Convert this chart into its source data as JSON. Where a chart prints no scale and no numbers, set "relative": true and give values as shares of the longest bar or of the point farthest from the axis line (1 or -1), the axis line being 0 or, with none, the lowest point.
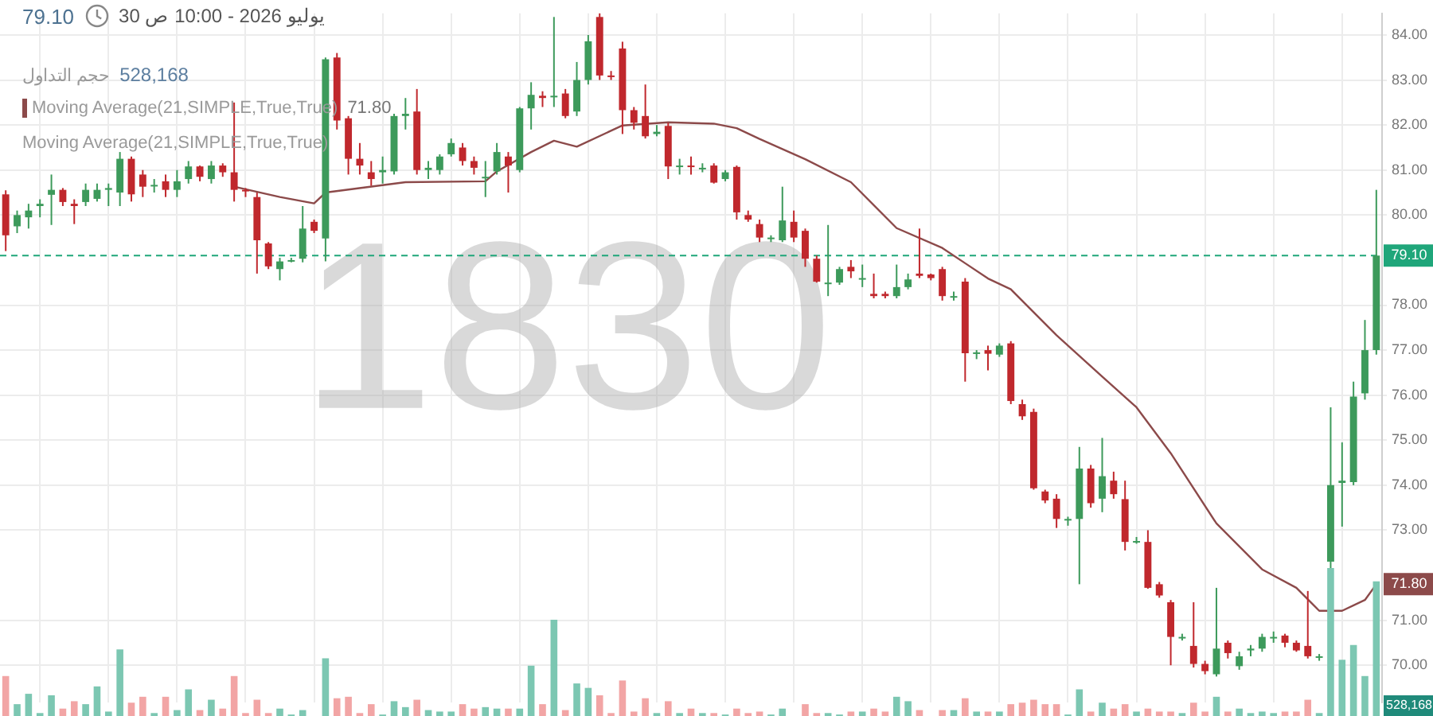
{
  "chart_data": [
    {
      "type": "candlestick",
      "categories": [
        null,
        null,
        null,
        null,
        null,
        null,
        null,
        null,
        null,
        null,
        null,
        null,
        null,
        null,
        null,
        null,
        null,
        null,
        null,
        null,
        null,
        null,
        null,
        null,
        null,
        null,
        null,
        null,
        null,
        null,
        null,
        null,
        null,
        null,
        null,
        null,
        null,
        null,
        null,
        null,
        null,
        null,
        null,
        null,
        null,
        null,
        null,
        null,
        null,
        null,
        null,
        null,
        null,
        null,
        null,
        null,
        null,
        null,
        null,
        null,
        null,
        null,
        null,
        null,
        null,
        null,
        null,
        null,
        null,
        null,
        null,
        null,
        null,
        null,
        null,
        null,
        null,
        null,
        null,
        null,
        null,
        null,
        null,
        null,
        null,
        null,
        null,
        null,
        null,
        null,
        null,
        null,
        null,
        null,
        null,
        null,
        null,
        null,
        null,
        null,
        null,
        null,
        null,
        null,
        null,
        null,
        null,
        null,
        null,
        null,
        null,
        null,
        null,
        null,
        null,
        null,
        null,
        null,
        null,
        null,
        null
      ],
      "ohlc": [
        [
          80.46,
          80.55,
          79.2,
          79.55
        ],
        [
          79.75,
          80.1,
          79.6,
          80.0
        ],
        [
          79.95,
          80.25,
          79.7,
          80.1
        ],
        [
          80.2,
          80.35,
          79.95,
          80.25
        ],
        [
          80.45,
          80.9,
          79.78,
          80.56
        ],
        [
          80.56,
          80.6,
          80.2,
          80.29
        ],
        [
          80.25,
          80.35,
          79.8,
          80.2
        ],
        [
          80.29,
          80.7,
          80.2,
          80.56
        ],
        [
          80.36,
          80.7,
          80.3,
          80.56
        ],
        [
          80.56,
          80.7,
          80.2,
          80.6
        ],
        [
          80.5,
          81.4,
          80.2,
          81.25
        ],
        [
          81.25,
          81.3,
          80.3,
          80.46
        ],
        [
          80.9,
          81.0,
          80.4,
          80.63
        ],
        [
          80.65,
          80.8,
          80.5,
          80.67
        ],
        [
          80.75,
          80.9,
          80.4,
          80.56
        ],
        [
          80.56,
          81.0,
          80.4,
          80.75
        ],
        [
          80.8,
          81.2,
          80.7,
          81.08
        ],
        [
          81.08,
          81.1,
          80.75,
          80.85
        ],
        [
          80.8,
          81.2,
          80.7,
          81.1
        ],
        [
          81.1,
          81.15,
          80.85,
          80.95
        ],
        [
          80.95,
          82.5,
          80.3,
          80.56
        ],
        [
          80.56,
          80.6,
          80.4,
          80.55
        ],
        [
          80.4,
          80.5,
          78.7,
          79.44
        ],
        [
          79.37,
          79.4,
          78.8,
          78.86
        ],
        [
          78.8,
          79.05,
          78.55,
          78.97
        ],
        [
          78.97,
          79.05,
          78.95,
          79.0
        ],
        [
          79.03,
          80.2,
          78.95,
          79.7
        ],
        [
          79.85,
          79.9,
          79.6,
          79.65
        ],
        [
          79.48,
          83.5,
          78.97,
          83.46
        ],
        [
          83.5,
          83.6,
          81.9,
          82.1
        ],
        [
          82.15,
          82.2,
          80.9,
          81.25
        ],
        [
          81.25,
          81.6,
          80.9,
          81.1
        ],
        [
          80.95,
          81.2,
          80.65,
          80.8
        ],
        [
          80.95,
          81.3,
          80.7,
          81.0
        ],
        [
          80.97,
          82.25,
          80.9,
          82.2
        ],
        [
          82.2,
          82.6,
          81.9,
          82.25
        ],
        [
          82.3,
          82.8,
          80.9,
          81.0
        ],
        [
          81.0,
          81.2,
          80.8,
          81.05
        ],
        [
          81.0,
          81.35,
          80.9,
          81.3
        ],
        [
          81.35,
          81.7,
          81.3,
          81.6
        ],
        [
          81.5,
          81.6,
          81.1,
          81.2
        ],
        [
          81.2,
          81.3,
          80.9,
          81.05
        ],
        [
          80.85,
          81.2,
          80.4,
          80.85
        ],
        [
          80.97,
          81.6,
          80.9,
          81.4
        ],
        [
          81.3,
          81.4,
          80.5,
          81.1
        ],
        [
          81.0,
          82.4,
          80.95,
          82.37
        ],
        [
          82.37,
          82.95,
          81.9,
          82.67
        ],
        [
          82.65,
          82.75,
          82.4,
          82.6
        ],
        [
          82.65,
          84.4,
          82.4,
          82.65
        ],
        [
          82.7,
          82.8,
          82.15,
          82.2
        ],
        [
          82.3,
          83.4,
          82.2,
          83.0
        ],
        [
          83.0,
          84.0,
          82.9,
          83.86
        ],
        [
          84.4,
          84.48,
          83.0,
          83.1
        ],
        [
          83.1,
          83.2,
          83.0,
          83.07
        ],
        [
          83.7,
          83.85,
          81.8,
          82.33
        ],
        [
          82.33,
          82.4,
          81.9,
          82.05
        ],
        [
          82.2,
          82.9,
          81.7,
          81.75
        ],
        [
          81.8,
          82.0,
          81.75,
          81.85
        ],
        [
          81.98,
          82.05,
          80.8,
          81.08
        ],
        [
          81.1,
          81.25,
          80.9,
          81.1
        ],
        [
          81.1,
          81.3,
          80.9,
          81.08
        ],
        [
          81.05,
          81.15,
          80.95,
          81.05
        ],
        [
          81.1,
          81.15,
          80.7,
          80.72
        ],
        [
          80.8,
          81.0,
          80.75,
          80.95
        ],
        [
          81.07,
          81.1,
          79.9,
          80.06
        ],
        [
          80.0,
          80.1,
          79.85,
          79.9
        ],
        [
          79.8,
          79.9,
          79.4,
          79.5
        ],
        [
          79.5,
          79.55,
          79.4,
          79.5
        ],
        [
          79.44,
          80.63,
          79.4,
          79.88
        ],
        [
          79.85,
          80.1,
          79.4,
          79.5
        ],
        [
          79.65,
          79.7,
          78.85,
          79.03
        ],
        [
          79.03,
          79.1,
          78.5,
          78.52
        ],
        [
          78.5,
          79.78,
          78.2,
          78.5
        ],
        [
          78.5,
          78.85,
          78.45,
          78.8
        ],
        [
          78.85,
          79.0,
          78.6,
          78.75
        ],
        [
          78.6,
          78.9,
          78.4,
          78.6
        ],
        [
          78.25,
          78.7,
          78.15,
          78.2
        ],
        [
          78.25,
          78.3,
          78.15,
          78.2
        ],
        [
          78.2,
          78.9,
          78.15,
          78.4
        ],
        [
          78.4,
          78.7,
          78.35,
          78.57
        ],
        [
          78.7,
          79.7,
          78.6,
          78.65
        ],
        [
          78.68,
          78.7,
          78.55,
          78.6
        ],
        [
          78.8,
          78.85,
          78.1,
          78.2
        ],
        [
          78.2,
          78.3,
          78.1,
          78.2
        ],
        [
          78.52,
          78.6,
          76.3,
          76.93
        ],
        [
          76.93,
          77.0,
          76.8,
          76.95
        ],
        [
          77.0,
          77.1,
          76.55,
          76.92
        ],
        [
          76.9,
          77.15,
          76.85,
          77.1
        ],
        [
          77.15,
          77.2,
          75.8,
          75.87
        ],
        [
          75.8,
          75.9,
          75.45,
          75.53
        ],
        [
          75.63,
          75.7,
          73.9,
          73.93
        ],
        [
          73.86,
          73.9,
          73.6,
          73.66
        ],
        [
          73.7,
          73.8,
          73.05,
          73.25
        ],
        [
          73.25,
          73.3,
          73.1,
          73.25
        ],
        [
          73.25,
          74.85,
          71.8,
          74.37
        ],
        [
          74.37,
          74.45,
          73.5,
          73.6
        ],
        [
          73.7,
          75.05,
          73.4,
          74.2
        ],
        [
          74.1,
          74.3,
          73.7,
          73.8
        ],
        [
          73.69,
          74.1,
          72.55,
          72.74
        ],
        [
          72.74,
          72.85,
          72.7,
          72.76
        ],
        [
          72.74,
          73.0,
          71.7,
          71.72
        ],
        [
          71.8,
          71.85,
          71.5,
          71.55
        ],
        [
          71.4,
          71.45,
          70.0,
          70.63
        ],
        [
          70.63,
          70.7,
          70.55,
          70.63
        ],
        [
          70.43,
          71.4,
          69.95,
          70.03
        ],
        [
          70.03,
          70.1,
          69.8,
          69.87
        ],
        [
          69.8,
          71.72,
          69.75,
          70.37
        ],
        [
          70.5,
          70.55,
          70.15,
          70.27
        ],
        [
          69.98,
          70.3,
          69.9,
          70.2
        ],
        [
          70.33,
          70.45,
          70.2,
          70.37
        ],
        [
          70.37,
          70.7,
          70.3,
          70.63
        ],
        [
          70.63,
          70.75,
          70.5,
          70.63
        ],
        [
          70.66,
          70.7,
          70.4,
          70.5
        ],
        [
          70.5,
          70.55,
          70.3,
          70.33
        ],
        [
          70.43,
          71.65,
          70.15,
          70.2
        ],
        [
          70.2,
          70.25,
          70.1,
          70.2
        ],
        [
          72.3,
          75.73,
          72.0,
          74.0
        ],
        [
          74.05,
          74.95,
          73.08,
          74.1
        ],
        [
          74.07,
          76.3,
          74.0,
          75.97
        ],
        [
          76.04,
          77.67,
          75.9,
          77.0
        ],
        [
          77.0,
          80.56,
          76.9,
          79.1
        ]
      ],
      "colors": [
        "#c0282d",
        "#3d9a5b",
        "#3d9a5b",
        "#3d9a5b",
        "#3d9a5b",
        "#c0282d",
        "#c0282d",
        "#3d9a5b",
        "#3d9a5b",
        "#3d9a5b",
        "#3d9a5b",
        "#c0282d",
        "#c0282d",
        "#3d9a5b",
        "#c0282d",
        "#3d9a5b",
        "#3d9a5b",
        "#c0282d",
        "#3d9a5b",
        "#c0282d",
        "#c0282d",
        "#c0282d",
        "#c0282d",
        "#c0282d",
        "#3d9a5b",
        "#3d9a5b",
        "#3d9a5b",
        "#c0282d",
        "#3d9a5b",
        "#c0282d",
        "#c0282d",
        "#c0282d",
        "#c0282d",
        "#3d9a5b",
        "#3d9a5b",
        "#3d9a5b",
        "#c0282d",
        "#3d9a5b",
        "#3d9a5b",
        "#3d9a5b",
        "#c0282d",
        "#c0282d",
        "#3d9a5b",
        "#3d9a5b",
        "#c0282d",
        "#3d9a5b",
        "#3d9a5b",
        "#c0282d",
        "#3d9a5b",
        "#c0282d",
        "#3d9a5b",
        "#3d9a5b",
        "#c0282d",
        "#c0282d",
        "#c0282d",
        "#c0282d",
        "#c0282d",
        "#3d9a5b",
        "#c0282d",
        "#3d9a5b",
        "#c0282d",
        "#3d9a5b",
        "#c0282d",
        "#3d9a5b",
        "#c0282d",
        "#c0282d",
        "#c0282d",
        "#3d9a5b",
        "#3d9a5b",
        "#c0282d",
        "#c0282d",
        "#c0282d",
        "#3d9a5b",
        "#3d9a5b",
        "#c0282d",
        "#3d9a5b",
        "#c0282d",
        "#c0282d",
        "#3d9a5b",
        "#3d9a5b",
        "#c0282d",
        "#c0282d",
        "#c0282d",
        "#3d9a5b",
        "#c0282d",
        "#3d9a5b",
        "#c0282d",
        "#3d9a5b",
        "#c0282d",
        "#c0282d",
        "#c0282d",
        "#c0282d",
        "#c0282d",
        "#3d9a5b",
        "#3d9a5b",
        "#c0282d",
        "#3d9a5b",
        "#c0282d",
        "#c0282d",
        "#3d9a5b",
        "#c0282d",
        "#c0282d",
        "#c0282d",
        "#3d9a5b",
        "#c0282d",
        "#c0282d",
        "#3d9a5b",
        "#c0282d",
        "#3d9a5b",
        "#3d9a5b",
        "#3d9a5b",
        "#3d9a5b",
        "#c0282d",
        "#c0282d",
        "#c0282d",
        "#3d9a5b",
        "#3d9a5b",
        "#3d9a5b",
        "#3d9a5b",
        "#3d9a5b",
        "#3d9a5b"
      ],
      "series": [
        {
          "type": "line",
          "name": "Moving Average(21,SIMPLE,True,True)",
          "color": "#8c4a4a",
          "values": [
            null,
            null,
            null,
            null,
            null,
            null,
            null,
            null,
            null,
            null,
            null,
            null,
            null,
            null,
            null,
            null,
            null,
            null,
            null,
            null,
            80.63,
            null,
            null,
            null,
            80.4,
            null,
            null,
            80.26,
            80.5,
            null,
            null,
            null,
            null,
            null,
            null,
            80.73,
            null,
            null,
            null,
            null,
            null,
            null,
            80.75,
            80.97,
            null,
            null,
            81.4,
            null,
            81.65,
            null,
            81.52,
            null,
            null,
            null,
            81.99,
            null,
            null,
            null,
            82.06,
            null,
            null,
            null,
            82.03,
            null,
            81.93,
            null,
            81.69,
            null,
            null,
            null,
            81.24,
            null,
            null,
            null,
            80.73,
            null,
            null,
            null,
            79.71,
            null,
            null,
            null,
            79.27,
            null,
            78.93,
            null,
            78.59,
            null,
            78.35,
            null,
            null,
            null,
            77.33,
            null,
            null,
            null,
            76.41,
            null,
            null,
            75.73,
            null,
            null,
            74.71,
            null,
            null,
            null,
            73.15,
            null,
            null,
            null,
            72.13,
            null,
            null,
            71.72,
            null,
            71.21,
            null,
            71.21,
            null,
            71.45,
            71.8
          ],
          "value_labels": [
            null,
            null,
            null,
            null,
            null,
            null,
            null,
            null,
            null,
            null,
            null,
            null,
            null,
            null,
            null,
            null,
            null,
            null,
            null,
            null,
            null,
            null,
            null,
            null,
            null,
            null,
            null,
            null,
            null,
            null,
            null,
            null,
            null,
            null,
            null,
            null,
            null,
            null,
            null,
            null,
            null,
            null,
            null,
            null,
            null,
            null,
            null,
            null,
            null,
            null,
            null,
            null,
            null,
            null,
            null,
            null,
            null,
            null,
            null,
            null,
            null,
            null,
            null,
            null,
            null,
            null,
            null,
            null,
            null,
            null,
            null,
            null,
            null,
            null,
            null,
            null,
            null,
            null,
            null,
            null,
            null,
            null,
            null,
            null,
            null,
            null,
            null,
            null,
            null,
            null,
            null,
            null,
            null,
            null,
            null,
            null,
            null,
            null,
            null,
            null,
            null,
            null,
            null,
            null,
            null,
            null,
            null,
            null,
            null,
            null,
            null,
            null,
            null,
            null,
            null,
            null,
            null,
            null,
            null,
            null,
            "71.80"
          ]
        }
      ],
      "ylim": [
        69.17,
        84.48
      ],
      "yticks": [
        {
          "value": 70,
          "label": "70.00"
        },
        {
          "value": 71,
          "label": "71.00"
        },
        {
          "value": 73,
          "label": "73.00"
        },
        {
          "value": 74,
          "label": "74.00"
        },
        {
          "value": 75,
          "label": "75.00"
        },
        {
          "value": 76,
          "label": "76.00"
        },
        {
          "value": 77,
          "label": "77.00"
        },
        {
          "value": 78,
          "label": "78.00"
        },
        {
          "value": 80,
          "label": "80.00"
        },
        {
          "value": 81,
          "label": "81.00"
        },
        {
          "value": 82,
          "label": "82.00"
        },
        {
          "value": 83,
          "label": "83.00"
        },
        {
          "value": 84,
          "label": "84.00"
        }
      ],
      "ref_lines": [
        {
          "axis": "y",
          "value": 79.1,
          "label": "79.10",
          "color": "#1fa67a",
          "line_style": "dashed"
        }
      ],
      "annotations": [
        "79.10",
        "يوليو 2026 - 10:00 ص 30",
        "حجم التداول",
        "528,168",
        "71.80",
        "Moving Average(21,SIMPLE,True,True)",
        "1830"
      ],
      "grid": true,
      "legend": "top left",
      "tick_labels": "y"
    },
    {
      "type": "bar",
      "relative": true,
      "categories": [
        null,
        null,
        null,
        null,
        null,
        null,
        null,
        null,
        null,
        null,
        null,
        null,
        null,
        null,
        null,
        null,
        null,
        null,
        null,
        null,
        null,
        null,
        null,
        null,
        null,
        null,
        null,
        null,
        null,
        null,
        null,
        null,
        null,
        null,
        null,
        null,
        null,
        null,
        null,
        null,
        null,
        null,
        null,
        null,
        null,
        null,
        null,
        null,
        null,
        null,
        null,
        null,
        null,
        null,
        null,
        null,
        null,
        null,
        null,
        null,
        null,
        null,
        null,
        null,
        null,
        null,
        null,
        null,
        null,
        null,
        null,
        null,
        null,
        null,
        null,
        null,
        null,
        null,
        null,
        null,
        null,
        null,
        null,
        null,
        null,
        null,
        null,
        null,
        null,
        null,
        null,
        null,
        null,
        null,
        null,
        null,
        null,
        null,
        null,
        null,
        null,
        null,
        null,
        null,
        null,
        null,
        null,
        null,
        null,
        null,
        null,
        null,
        null,
        null,
        null,
        null,
        null,
        null,
        null,
        null,
        null
      ],
      "values": [
        0.27,
        0.08,
        0.15,
        0.02,
        0.14,
        0.05,
        0.1,
        0.08,
        0.2,
        0.03,
        0.45,
        0.09,
        0.13,
        0.02,
        0.13,
        0.04,
        0.18,
        0.04,
        0.11,
        0.05,
        0.27,
        0.02,
        0.11,
        0.02,
        0.05,
        0.01,
        0.04,
        null,
        0.39,
        0.12,
        0.13,
        0.02,
        0.08,
        0.01,
        0.1,
        0.06,
        0.11,
        0.04,
        0.03,
        0.03,
        0.08,
        0.05,
        0.06,
        0.05,
        0.05,
        0.05,
        0.34,
        0.08,
        0.65,
        0.04,
        0.22,
        0.19,
        0.14,
        0.02,
        0.24,
        0.03,
        0.12,
        0.02,
        0.1,
        0.02,
        0.05,
        0.02,
        0.02,
        0.01,
        0.05,
        0.02,
        0.03,
        0.01,
        0.05,
        null,
        0.08,
        0.02,
        0.02,
        0.01,
        0.03,
        0.03,
        0.05,
        0.03,
        0.13,
        0.1,
        0.04,
        null,
        0.04,
        0.04,
        0.12,
        0.03,
        0.03,
        0.03,
        0.08,
        0.09,
        0.11,
        0.08,
        0.08,
        0.01,
        0.18,
        0.03,
        0.09,
        0.05,
        0.08,
        0.03,
        0.05,
        0.03,
        0.03,
        0.02,
        0.09,
        0.03,
        0.13,
        0.03,
        0.05,
        0.02,
        0.03,
        0.02,
        0.03,
        0.03,
        0.11,
        0.02,
        1,
        0.38,
        0.48,
        0.27,
        0.91
      ],
      "colors": [
        "#f2a5a5",
        "#7cc7b2",
        "#7cc7b2",
        "#7cc7b2",
        "#7cc7b2",
        "#f2a5a5",
        "#f2a5a5",
        "#7cc7b2",
        "#7cc7b2",
        "#7cc7b2",
        "#7cc7b2",
        "#f2a5a5",
        "#f2a5a5",
        "#7cc7b2",
        "#f2a5a5",
        "#7cc7b2",
        "#7cc7b2",
        "#f2a5a5",
        "#7cc7b2",
        "#f2a5a5",
        "#f2a5a5",
        "#f2a5a5",
        "#f2a5a5",
        "#f2a5a5",
        "#7cc7b2",
        "#7cc7b2",
        "#7cc7b2",
        "#f2a5a5",
        "#7cc7b2",
        "#f2a5a5",
        "#f2a5a5",
        "#f2a5a5",
        "#f2a5a5",
        "#7cc7b2",
        "#7cc7b2",
        "#7cc7b2",
        "#f2a5a5",
        "#7cc7b2",
        "#7cc7b2",
        "#7cc7b2",
        "#f2a5a5",
        "#f2a5a5",
        "#7cc7b2",
        "#7cc7b2",
        "#f2a5a5",
        "#7cc7b2",
        "#7cc7b2",
        "#f2a5a5",
        "#7cc7b2",
        "#f2a5a5",
        "#7cc7b2",
        "#7cc7b2",
        "#f2a5a5",
        "#f2a5a5",
        "#f2a5a5",
        "#f2a5a5",
        "#f2a5a5",
        "#7cc7b2",
        "#f2a5a5",
        "#7cc7b2",
        "#f2a5a5",
        "#7cc7b2",
        "#f2a5a5",
        "#7cc7b2",
        "#f2a5a5",
        "#f2a5a5",
        "#f2a5a5",
        "#7cc7b2",
        "#7cc7b2",
        "#f2a5a5",
        "#f2a5a5",
        "#f2a5a5",
        "#7cc7b2",
        "#7cc7b2",
        "#f2a5a5",
        "#7cc7b2",
        "#f2a5a5",
        "#f2a5a5",
        "#7cc7b2",
        "#7cc7b2",
        "#f2a5a5",
        "#f2a5a5",
        "#f2a5a5",
        "#7cc7b2",
        "#f2a5a5",
        "#7cc7b2",
        "#f2a5a5",
        "#7cc7b2",
        "#f2a5a5",
        "#f2a5a5",
        "#f2a5a5",
        "#f2a5a5",
        "#f2a5a5",
        "#7cc7b2",
        "#7cc7b2",
        "#f2a5a5",
        "#7cc7b2",
        "#f2a5a5",
        "#f2a5a5",
        "#7cc7b2",
        "#f2a5a5",
        "#f2a5a5",
        "#f2a5a5",
        "#7cc7b2",
        "#f2a5a5",
        "#f2a5a5",
        "#7cc7b2",
        "#f2a5a5",
        "#7cc7b2",
        "#7cc7b2",
        "#7cc7b2",
        "#7cc7b2",
        "#f2a5a5",
        "#f2a5a5",
        "#f2a5a5",
        "#7cc7b2",
        "#7cc7b2",
        "#7cc7b2",
        "#7cc7b2",
        "#7cc7b2",
        "#7cc7b2"
      ],
      "annotations": [
        "528,168"
      ]
    }
  ]
}
